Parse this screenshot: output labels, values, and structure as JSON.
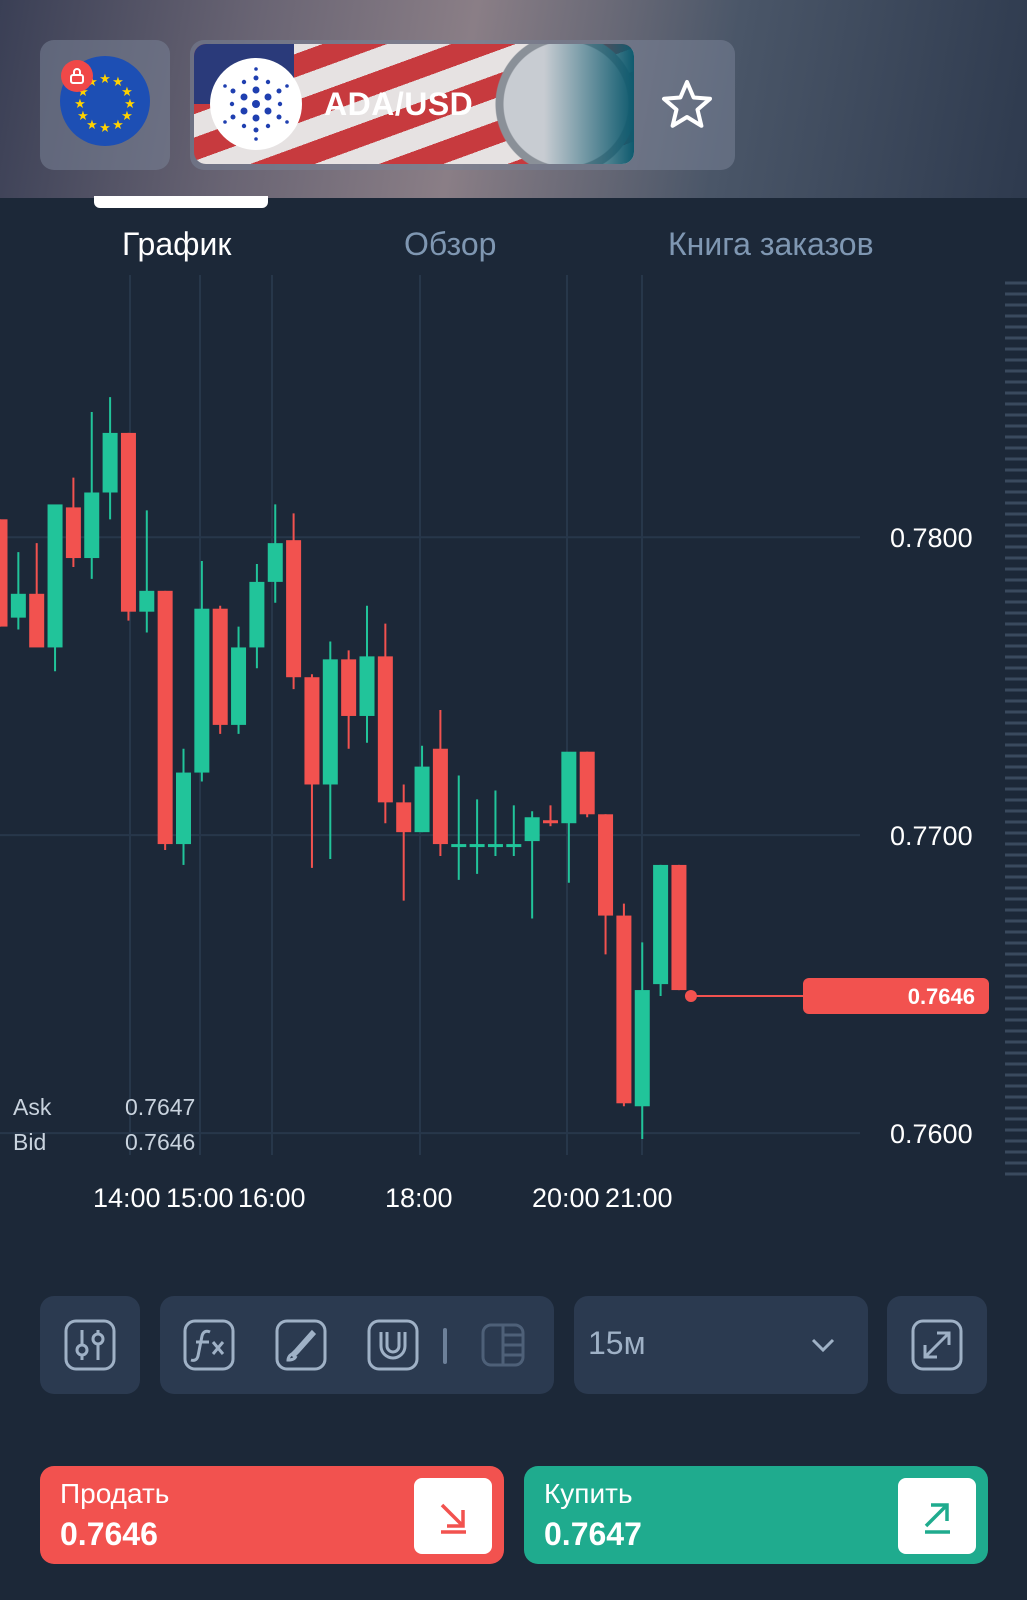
{
  "header": {
    "pair": "ADA/USD",
    "region_icon": "eu-flag-icon",
    "lock_icon": "lock-icon",
    "favorite_icon": "star-icon"
  },
  "tabs": [
    {
      "label": "График",
      "active": true
    },
    {
      "label": "Обзор",
      "active": false
    },
    {
      "label": "Книга заказов",
      "active": false
    }
  ],
  "quote": {
    "ask_label": "Ask",
    "ask": "0.7647",
    "bid_label": "Bid",
    "bid": "0.7646",
    "last_price": "0.7646"
  },
  "colors": {
    "up": "#21c49a",
    "down": "#f2524f",
    "background": "#1c2838",
    "panel": "#2b3a50"
  },
  "chart_data": {
    "type": "candlestick",
    "y_ticks": [
      "0.7800",
      "0.7700",
      "0.7600"
    ],
    "x_ticks": [
      "14:00",
      "15:00",
      "16:00",
      "18:00",
      "20:00",
      "21:00"
    ],
    "ylim": [
      0.7596,
      0.7888
    ],
    "grid": true,
    "last_price": 0.7646,
    "candles": [
      {
        "o": 0.7806,
        "h": 0.7806,
        "l": 0.777,
        "c": 0.777
      },
      {
        "o": 0.7773,
        "h": 0.7795,
        "l": 0.7769,
        "c": 0.7781
      },
      {
        "o": 0.7781,
        "h": 0.7798,
        "l": 0.7764,
        "c": 0.7763
      },
      {
        "o": 0.7763,
        "h": 0.7809,
        "l": 0.7755,
        "c": 0.7811
      },
      {
        "o": 0.781,
        "h": 0.782,
        "l": 0.779,
        "c": 0.7793
      },
      {
        "o": 0.7793,
        "h": 0.7842,
        "l": 0.7786,
        "c": 0.7815
      },
      {
        "o": 0.7815,
        "h": 0.7847,
        "l": 0.7806,
        "c": 0.7835
      },
      {
        "o": 0.7835,
        "h": 0.7835,
        "l": 0.7772,
        "c": 0.7775
      },
      {
        "o": 0.7775,
        "h": 0.7809,
        "l": 0.7768,
        "c": 0.7782
      },
      {
        "o": 0.7782,
        "h": 0.7782,
        "l": 0.7695,
        "c": 0.7697
      },
      {
        "o": 0.7697,
        "h": 0.7729,
        "l": 0.769,
        "c": 0.7721
      },
      {
        "o": 0.7721,
        "h": 0.7792,
        "l": 0.7718,
        "c": 0.7776
      },
      {
        "o": 0.7776,
        "h": 0.7777,
        "l": 0.7734,
        "c": 0.7737
      },
      {
        "o": 0.7737,
        "h": 0.777,
        "l": 0.7734,
        "c": 0.7763
      },
      {
        "o": 0.7763,
        "h": 0.7791,
        "l": 0.7756,
        "c": 0.7785
      },
      {
        "o": 0.7785,
        "h": 0.7811,
        "l": 0.7778,
        "c": 0.7798
      },
      {
        "o": 0.7799,
        "h": 0.7808,
        "l": 0.7749,
        "c": 0.7753
      },
      {
        "o": 0.7753,
        "h": 0.7754,
        "l": 0.7689,
        "c": 0.7717
      },
      {
        "o": 0.7717,
        "h": 0.7765,
        "l": 0.7692,
        "c": 0.7759
      },
      {
        "o": 0.7759,
        "h": 0.7762,
        "l": 0.7729,
        "c": 0.774
      },
      {
        "o": 0.774,
        "h": 0.7777,
        "l": 0.7731,
        "c": 0.776
      },
      {
        "o": 0.776,
        "h": 0.7771,
        "l": 0.7704,
        "c": 0.7711
      },
      {
        "o": 0.7711,
        "h": 0.7717,
        "l": 0.7678,
        "c": 0.7701
      },
      {
        "o": 0.7701,
        "h": 0.773,
        "l": 0.7701,
        "c": 0.7723
      },
      {
        "o": 0.7729,
        "h": 0.7742,
        "l": 0.7693,
        "c": 0.7697
      },
      {
        "o": 0.7697,
        "h": 0.772,
        "l": 0.7685,
        "c": 0.7697
      },
      {
        "o": 0.7697,
        "h": 0.7712,
        "l": 0.7687,
        "c": 0.7697
      },
      {
        "o": 0.7697,
        "h": 0.7715,
        "l": 0.7693,
        "c": 0.7697
      },
      {
        "o": 0.7697,
        "h": 0.771,
        "l": 0.7693,
        "c": 0.7697
      },
      {
        "o": 0.7698,
        "h": 0.7708,
        "l": 0.7672,
        "c": 0.7706
      },
      {
        "o": 0.7705,
        "h": 0.771,
        "l": 0.7703,
        "c": 0.7704
      },
      {
        "o": 0.7704,
        "h": 0.7727,
        "l": 0.7684,
        "c": 0.7728
      },
      {
        "o": 0.7728,
        "h": 0.7728,
        "l": 0.7706,
        "c": 0.7707
      },
      {
        "o": 0.7707,
        "h": 0.7707,
        "l": 0.766,
        "c": 0.7673
      },
      {
        "o": 0.7673,
        "h": 0.7677,
        "l": 0.7609,
        "c": 0.761
      },
      {
        "o": 0.7609,
        "h": 0.7664,
        "l": 0.7598,
        "c": 0.7648
      },
      {
        "o": 0.765,
        "h": 0.769,
        "l": 0.7646,
        "c": 0.769
      },
      {
        "o": 0.769,
        "h": 0.769,
        "l": 0.7648,
        "c": 0.7648
      }
    ]
  },
  "toolbar": {
    "indicators_icon": "sliders-icon",
    "function_icon": "fx-icon",
    "draw_icon": "brush-icon",
    "magnet_icon": "magnet-icon",
    "layout_icon": "split-layout-icon",
    "timeframe": "15м",
    "timeframe_icon": "chevron-down-icon",
    "fullscreen_icon": "expand-icon"
  },
  "trade": {
    "sell_label": "Продать",
    "sell_price": "0.7646",
    "sell_icon": "arrow-down-right-icon",
    "buy_label": "Купить",
    "buy_price": "0.7647",
    "buy_icon": "arrow-up-right-icon"
  }
}
